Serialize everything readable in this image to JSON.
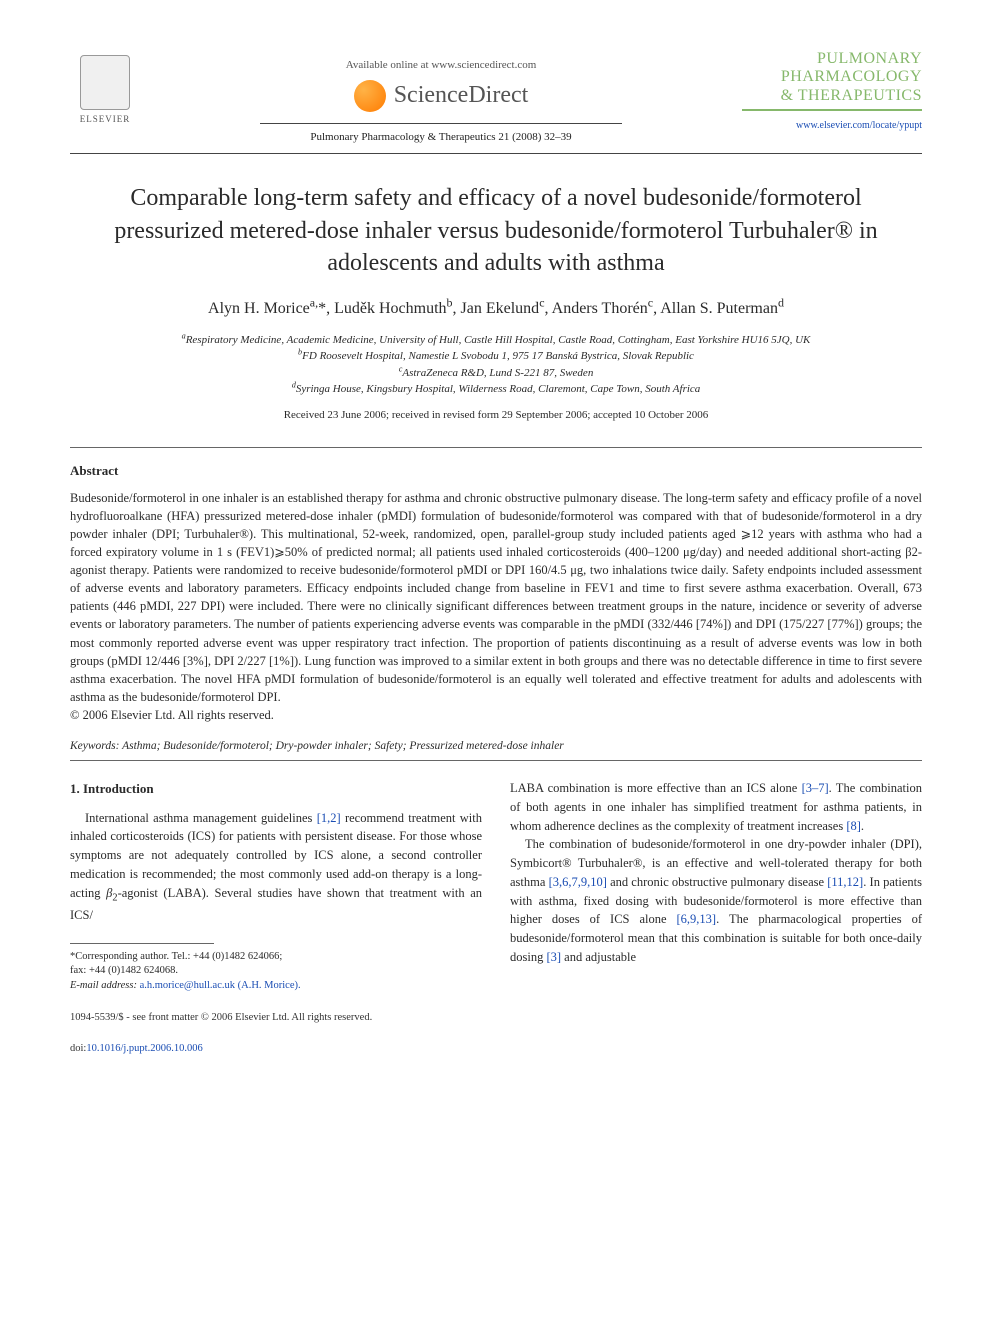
{
  "header": {
    "elsevier": "ELSEVIER",
    "available": "Available online at www.sciencedirect.com",
    "sciencedirect": "ScienceDirect",
    "citation": "Pulmonary Pharmacology & Therapeutics 21 (2008) 32–39",
    "journal_line1": "PULMONARY",
    "journal_line2": "PHARMACOLOGY",
    "journal_line3": "& THERAPEUTICS",
    "journal_url": "www.elsevier.com/locate/ypupt"
  },
  "title": "Comparable long-term safety and efficacy of a novel budesonide/formoterol pressurized metered-dose inhaler versus budesonide/formoterol Turbuhaler® in adolescents and adults with asthma",
  "authors_html": "Alyn H. Morice<sup>a,</sup>*, Luděk Hochmuth<sup>b</sup>, Jan Ekelund<sup>c</sup>, Anders Thorén<sup>c</sup>, Allan S. Puterman<sup>d</sup>",
  "affiliations": {
    "a": "Respiratory Medicine, Academic Medicine, University of Hull, Castle Hill Hospital, Castle Road, Cottingham, East Yorkshire HU16 5JQ, UK",
    "b": "FD Roosevelt Hospital, Namestie L Svobodu 1, 975 17 Banská Bystrica, Slovak Republic",
    "c": "AstraZeneca R&D, Lund S-221 87, Sweden",
    "d": "Syringa House, Kingsbury Hospital, Wilderness Road, Claremont, Cape Town, South Africa"
  },
  "dates": "Received 23 June 2006; received in revised form 29 September 2006; accepted 10 October 2006",
  "abstract_head": "Abstract",
  "abstract": "Budesonide/formoterol in one inhaler is an established therapy for asthma and chronic obstructive pulmonary disease. The long-term safety and efficacy profile of a novel hydrofluoroalkane (HFA) pressurized metered-dose inhaler (pMDI) formulation of budesonide/formoterol was compared with that of budesonide/formoterol in a dry powder inhaler (DPI; Turbuhaler®). This multinational, 52-week, randomized, open, parallel-group study included patients aged ⩾12 years with asthma who had a forced expiratory volume in 1 s (FEV1)⩾50% of predicted normal; all patients used inhaled corticosteroids (400–1200 μg/day) and needed additional short-acting β2-agonist therapy. Patients were randomized to receive budesonide/formoterol pMDI or DPI 160/4.5 μg, two inhalations twice daily. Safety endpoints included assessment of adverse events and laboratory parameters. Efficacy endpoints included change from baseline in FEV1 and time to first severe asthma exacerbation. Overall, 673 patients (446 pMDI, 227 DPI) were included. There were no clinically significant differences between treatment groups in the nature, incidence or severity of adverse events or laboratory parameters. The number of patients experiencing adverse events was comparable in the pMDI (332/446 [74%]) and DPI (175/227 [77%]) groups; the most commonly reported adverse event was upper respiratory tract infection. The proportion of patients discontinuing as a result of adverse events was low in both groups (pMDI 12/446 [3%], DPI 2/227 [1%]). Lung function was improved to a similar extent in both groups and there was no detectable difference in time to first severe asthma exacerbation. The novel HFA pMDI formulation of budesonide/formoterol is an equally well tolerated and effective treatment for adults and adolescents with asthma as the budesonide/formoterol DPI.",
  "copyright": "© 2006 Elsevier Ltd. All rights reserved.",
  "keywords": "Keywords: Asthma; Budesonide/formoterol; Dry-powder inhaler; Safety; Pressurized metered-dose inhaler",
  "section_head": "1. Introduction",
  "col1_p1": "International asthma management guidelines [1,2] recommend treatment with inhaled corticosteroids (ICS) for patients with persistent disease. For those whose symptoms are not adequately controlled by ICS alone, a second controller medication is recommended; the most commonly used add-on therapy is a long-acting β2-agonist (LABA). Several studies have shown that treatment with an ICS/",
  "col2_p1": "LABA combination is more effective than an ICS alone [3–7]. The combination of both agents in one inhaler has simplified treatment for asthma patients, in whom adherence declines as the complexity of treatment increases [8].",
  "col2_p2": "The combination of budesonide/formoterol in one dry-powder inhaler (DPI), Symbicort® Turbuhaler®, is an effective and well-tolerated therapy for both asthma [3,6,7,9,10] and chronic obstructive pulmonary disease [11,12]. In patients with asthma, fixed dosing with budesonide/formoterol is more effective than higher doses of ICS alone [6,9,13]. The pharmacological properties of budesonide/formoterol mean that this combination is suitable for both once-daily dosing [3] and adjustable",
  "footnote": {
    "corr": "*Corresponding author. Tel.: +44 (0)1482 624066;",
    "fax": "fax: +44 (0)1482 624068.",
    "email_label": "E-mail address:",
    "email": "a.h.morice@hull.ac.uk (A.H. Morice)."
  },
  "footer": {
    "line1": "1094-5539/$ - see front matter © 2006 Elsevier Ltd. All rights reserved.",
    "doi_label": "doi:",
    "doi": "10.1016/j.pupt.2006.10.006"
  },
  "colors": {
    "link": "#1a4db3",
    "journal_green": "#86b86b",
    "text": "#2a2a2a"
  }
}
